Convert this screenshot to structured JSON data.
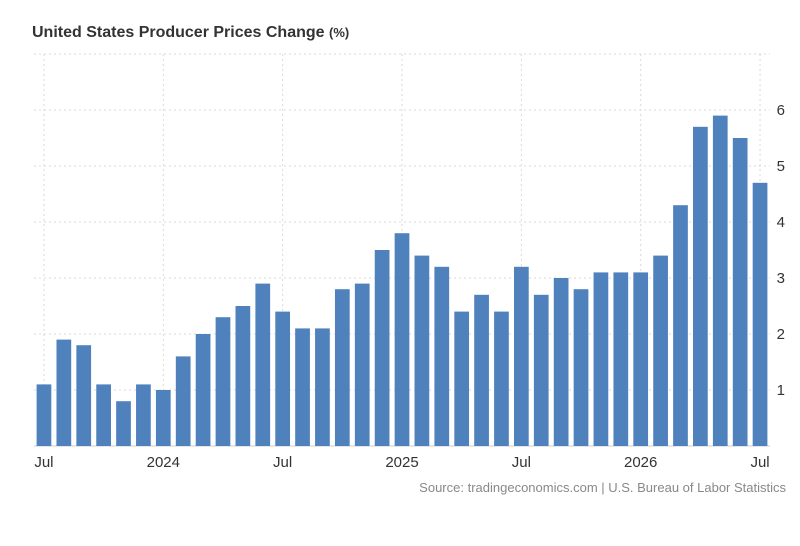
{
  "header": {
    "title": "United States Producer Prices Change",
    "unit": "(%)"
  },
  "footer": {
    "source": "Source: tradingeconomics.com | U.S. Bureau of Labor Statistics"
  },
  "colors": {
    "bar": "#4f81bd",
    "grid": "#d9d9d9",
    "text": "#333333"
  },
  "chart_data": {
    "type": "bar",
    "title": "United States Producer Prices Change (%)",
    "xlabel": "",
    "ylabel": "",
    "ylim": [
      0,
      7
    ],
    "y_ticks": [
      1,
      2,
      3,
      4,
      5,
      6
    ],
    "grid": true,
    "categories": [
      "2023-07",
      "2023-08",
      "2023-09",
      "2023-10",
      "2023-11",
      "2023-12",
      "2024-01",
      "2024-02",
      "2024-03",
      "2024-04",
      "2024-05",
      "2024-06",
      "2024-07",
      "2024-08",
      "2024-09",
      "2024-10",
      "2024-11",
      "2024-12",
      "2025-01",
      "2025-02",
      "2025-03",
      "2025-04",
      "2025-05",
      "2025-06",
      "2025-07",
      "2025-08",
      "2025-09",
      "2025-10",
      "2025-11",
      "2025-12",
      "2026-01",
      "2026-02",
      "2026-03",
      "2026-04",
      "2026-05",
      "2026-06",
      "2026-07"
    ],
    "values": [
      1.1,
      1.9,
      1.8,
      1.1,
      0.8,
      1.1,
      1.0,
      1.6,
      2.0,
      2.3,
      2.5,
      2.9,
      2.4,
      2.1,
      2.1,
      2.8,
      2.9,
      3.5,
      3.8,
      3.4,
      3.2,
      2.4,
      2.7,
      2.4,
      3.2,
      2.7,
      3.0,
      2.8,
      3.1,
      3.1,
      3.1,
      3.4,
      4.3,
      5.7,
      5.9,
      5.5,
      4.7
    ],
    "x_tick_labels": [
      {
        "index": 0,
        "label": "Jul"
      },
      {
        "index": 6,
        "label": "2024"
      },
      {
        "index": 12,
        "label": "Jul"
      },
      {
        "index": 18,
        "label": "2025"
      },
      {
        "index": 24,
        "label": "Jul"
      },
      {
        "index": 30,
        "label": "2026"
      },
      {
        "index": 36,
        "label": "Jul"
      }
    ]
  }
}
